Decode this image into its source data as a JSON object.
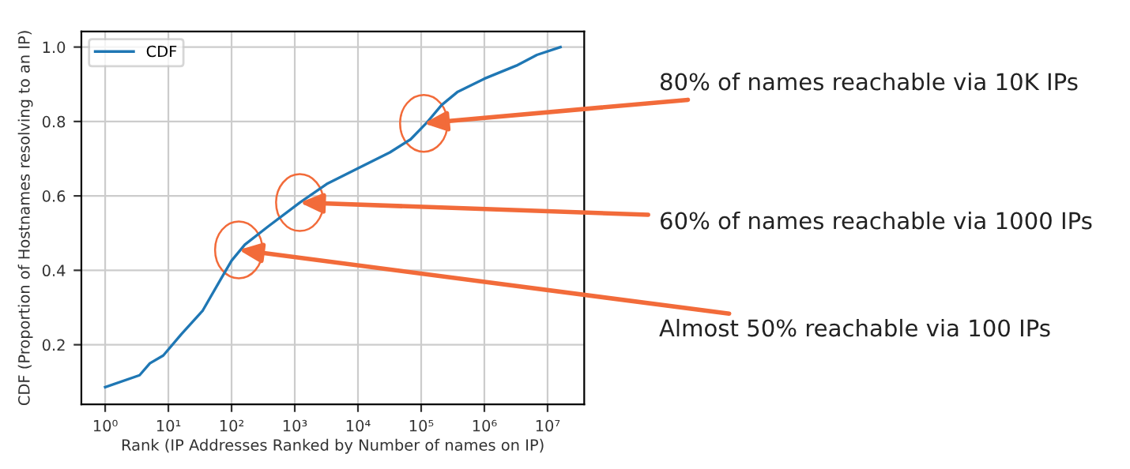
{
  "chart_data": {
    "type": "line",
    "xlabel": "Rank (IP Addresses Ranked by Number of names on IP)",
    "ylabel": "CDF (Proportion of Hostnames resolving to an IP)",
    "log": "x",
    "grid": true,
    "legend": "top left",
    "xlim": [
      0.42,
      38000000
    ],
    "ylim": [
      0.04,
      1.042
    ],
    "xticks": [
      {
        "value": 1,
        "label": "10⁰"
      },
      {
        "value": 10,
        "label": "10¹"
      },
      {
        "value": 100,
        "label": "10²"
      },
      {
        "value": 1000,
        "label": "10³"
      },
      {
        "value": 10000,
        "label": "10⁴"
      },
      {
        "value": 100000,
        "label": "10⁵"
      },
      {
        "value": 1000000,
        "label": "10⁶"
      },
      {
        "value": 10000000,
        "label": "10⁷"
      }
    ],
    "yticks": [
      0.2,
      0.4,
      0.6,
      0.8,
      {
        "value": 1,
        "label": "1.0"
      }
    ],
    "series": [
      {
        "name": "CDF",
        "color": "#1f77b4",
        "x": [
          1,
          3.5,
          5.1,
          8.3,
          16,
          35,
          68,
          100,
          162,
          380,
          1200,
          3200,
          12000,
          32000,
          68000,
          120000,
          210000,
          380000,
          1000000,
          3200000,
          6800000,
          16000000
        ],
        "values": [
          0.086,
          0.118,
          0.15,
          0.171,
          0.228,
          0.292,
          0.377,
          0.426,
          0.469,
          0.518,
          0.582,
          0.632,
          0.681,
          0.717,
          0.752,
          0.795,
          0.844,
          0.88,
          0.915,
          0.95,
          0.979,
          1.0
        ]
      }
    ],
    "annotations": [
      {
        "text": "80% of names reachable via 10K IPs",
        "x": 110000,
        "y": 0.795
      },
      {
        "text": "60% of names reachable via 1000 IPs",
        "x": 1200,
        "y": 0.582
      },
      {
        "text": "Almost 50% reachable via 100 IPs",
        "x": 130,
        "y": 0.455
      }
    ]
  }
}
